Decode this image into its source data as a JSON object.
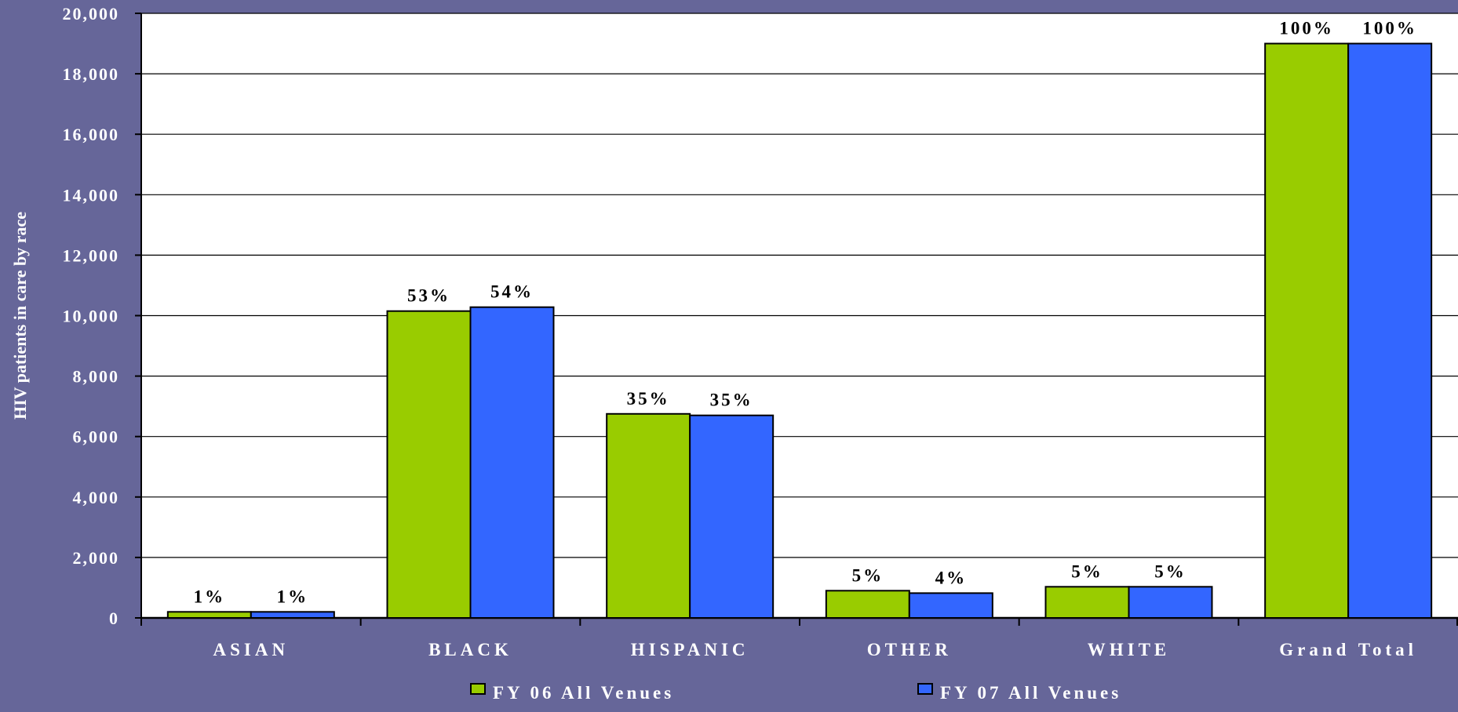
{
  "chart_data": {
    "type": "bar",
    "title": "",
    "xlabel": "",
    "ylabel": "HIV patients in care by race",
    "ylim": [
      0,
      20000
    ],
    "yticks": [
      0,
      2000,
      4000,
      6000,
      8000,
      10000,
      12000,
      14000,
      16000,
      18000,
      20000
    ],
    "ytick_labels": [
      "0",
      "2,000",
      "4,000",
      "6,000",
      "8,000",
      "10,000",
      "12,000",
      "14,000",
      "16,000",
      "18,000",
      "20,000"
    ],
    "categories": [
      "ASIAN",
      "BLACK",
      "HISPANIC",
      "OTHER",
      "WHITE",
      "Grand Total"
    ],
    "series": [
      {
        "name": "FY 06 All Venues",
        "color": "#99cc00",
        "values": [
          200,
          10150,
          6750,
          900,
          1030,
          19000
        ],
        "labels": [
          "1%",
          "53%",
          "35%",
          "5%",
          "5%",
          "100%"
        ]
      },
      {
        "name": "FY 07 All Venues",
        "color": "#3366ff",
        "values": [
          200,
          10280,
          6700,
          820,
          1030,
          19000
        ],
        "labels": [
          "1%",
          "54%",
          "35%",
          "4%",
          "5%",
          "100%"
        ]
      }
    ],
    "grid": true,
    "legend_position": "bottom",
    "colors": {
      "background": "#666699",
      "plot_area": "#ffffff",
      "text": "#ffffff",
      "data_label": "#000000"
    }
  }
}
